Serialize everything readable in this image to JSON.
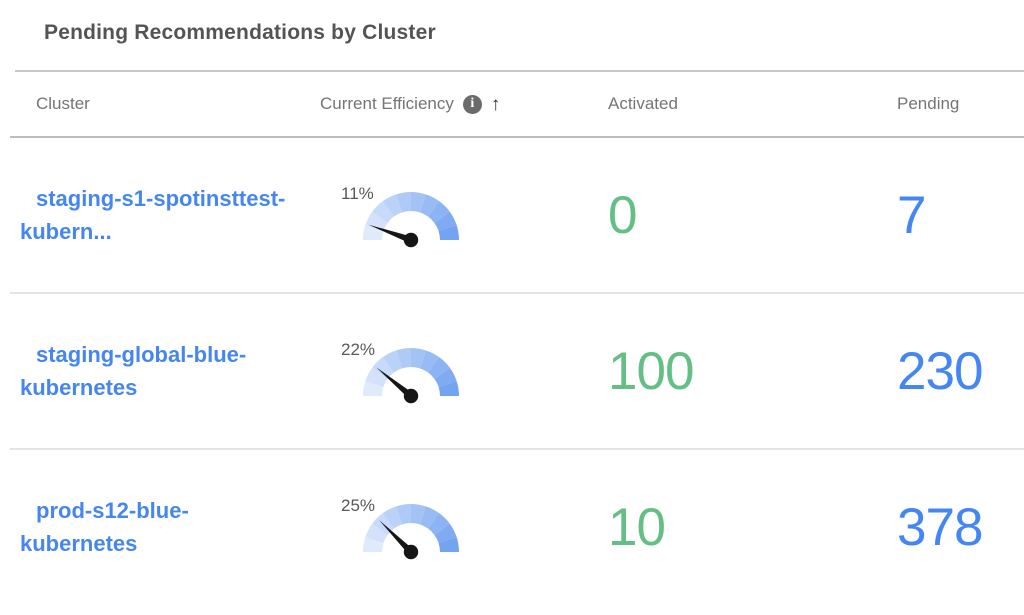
{
  "title": "Pending Recommendations by Cluster",
  "colors": {
    "link_blue": "#4586f0",
    "activated_green": "#64bf85",
    "pending_blue": "#4486f3",
    "title_gray": "#545457",
    "header_gray": "#757575"
  },
  "gauge": {
    "segments": 10,
    "color_start": "#dfeafb",
    "color_end": "#74a3f1",
    "needle_color": "#161616"
  },
  "table": {
    "headers": {
      "cluster": "Cluster",
      "efficiency": "Current Efficiency",
      "activated": "Activated",
      "pending": "Pending"
    },
    "header_icons": {
      "info_glyph": "i",
      "sort_glyph": "↑"
    },
    "rows": [
      {
        "cluster": "staging-s1-spotinsttest-kubern...",
        "cluster_line1": "staging-s1-spotinsttest-",
        "cluster_line2": "kubern...",
        "efficiency_pct": 11,
        "efficiency_label": "11%",
        "activated": "0",
        "pending": "7"
      },
      {
        "cluster": "staging-global-blue-kubernetes",
        "cluster_line1": "staging-global-blue-",
        "cluster_line2": "kubernetes",
        "efficiency_pct": 22,
        "efficiency_label": "22%",
        "activated": "100",
        "pending": "230"
      },
      {
        "cluster": "prod-s12-blue-kubernetes",
        "cluster_line1": "prod-s12-blue-",
        "cluster_line2": "kubernetes",
        "efficiency_pct": 25,
        "efficiency_label": "25%",
        "activated": "10",
        "pending": "378"
      }
    ]
  }
}
